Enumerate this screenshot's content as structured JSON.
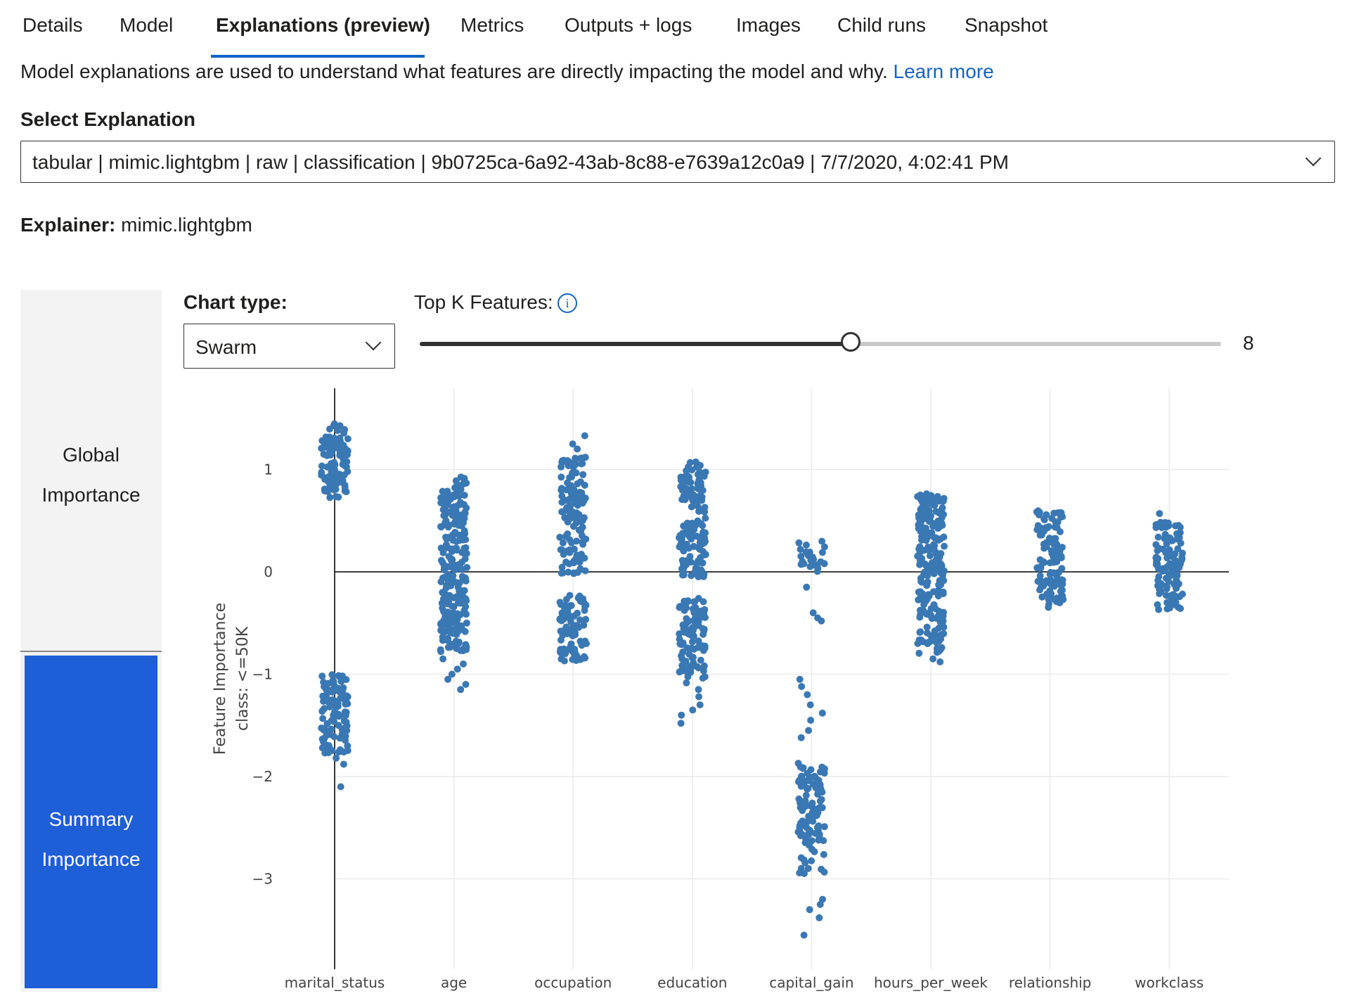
{
  "tabs": [
    {
      "label": "Details"
    },
    {
      "label": "Model"
    },
    {
      "label": "Explanations (preview)",
      "active": true
    },
    {
      "label": "Metrics"
    },
    {
      "label": "Outputs + logs"
    },
    {
      "label": "Images"
    },
    {
      "label": "Child runs"
    },
    {
      "label": "Snapshot"
    }
  ],
  "intro": {
    "text": "Model explanations are used to understand what features are directly impacting the model and why.",
    "link": "Learn more"
  },
  "select_explanation": {
    "label": "Select Explanation",
    "value": "tabular | mimic.lightgbm | raw | classification | 9b0725ca-6a92-43ab-8c88-e7639a12c0a9 | 7/7/2020, 4:02:41 PM"
  },
  "explainer": {
    "label": "Explainer:",
    "value": "mimic.lightgbm"
  },
  "side_nav": {
    "global_line1": "Global",
    "global_line2": "Importance",
    "summary_line1": "Summary",
    "summary_line2": "Importance"
  },
  "controls": {
    "chart_type_label": "Chart type:",
    "chart_type_value": "Swarm",
    "topk_label": "Top K Features:",
    "topk_value": "8",
    "topk_fraction": 0.538
  },
  "colors": {
    "accent": "#1e5ed6",
    "tab_underline": "#0f62c8",
    "link": "#1565c0",
    "point": "#3a78b4"
  },
  "chart_data": {
    "type": "scatter",
    "title": "",
    "ylabel_line1": "Feature Importance",
    "ylabel_line2": "class:  <=50K",
    "xlabel": "",
    "categories": [
      "marital_status",
      "age",
      "occupation",
      "education",
      "capital_gain",
      "hours_per_week",
      "relationship",
      "workclass"
    ],
    "ylim": [
      -3.9,
      1.8
    ],
    "yticks": [
      1,
      0,
      -1,
      -2,
      -3
    ],
    "ytick_labels": [
      "1",
      "0",
      "−1",
      "−2",
      "−3"
    ],
    "series": [
      {
        "clusters": [
          {
            "min": 0.72,
            "max": 1.45,
            "density": 1.0
          },
          {
            "min": -1.78,
            "max": -1.0,
            "density": 1.0
          }
        ],
        "outliers": [
          -1.82,
          -1.88,
          -2.1
        ]
      },
      {
        "clusters": [
          {
            "min": -0.78,
            "max": 0.93,
            "density": 1.0
          }
        ],
        "outliers": [
          -0.85,
          -0.9,
          -0.95,
          -1.0,
          -1.05,
          -1.1,
          -1.15
        ]
      },
      {
        "clusters": [
          {
            "min": 0.1,
            "max": 1.15,
            "density": 0.8
          },
          {
            "min": -0.02,
            "max": 0.1,
            "density": 0.8
          },
          {
            "min": -0.88,
            "max": -0.22,
            "density": 1.0
          }
        ],
        "outliers": [
          1.2,
          1.25,
          1.33
        ]
      },
      {
        "clusters": [
          {
            "min": -0.05,
            "max": 1.08,
            "density": 1.0
          },
          {
            "min": -0.95,
            "max": -0.25,
            "density": 1.0
          },
          {
            "min": -1.1,
            "max": -0.95,
            "density": 0.5
          }
        ],
        "outliers": [
          -1.15,
          -1.22,
          -1.3,
          -1.35,
          -1.4,
          -1.48
        ]
      },
      {
        "clusters": [
          {
            "min": 0.0,
            "max": 0.3,
            "density": 0.6
          },
          {
            "min": -2.35,
            "max": -1.85,
            "density": 0.8
          },
          {
            "min": -2.95,
            "max": -2.35,
            "density": 0.6
          }
        ],
        "outliers": [
          -0.15,
          -0.45,
          -0.48,
          -0.4,
          -1.05,
          -1.12,
          -1.2,
          -1.3,
          -1.38,
          -1.45,
          -1.55,
          -1.62,
          -3.2,
          -3.25,
          -3.3,
          -3.38,
          -3.55
        ]
      },
      {
        "clusters": [
          {
            "min": -0.8,
            "max": 0.77,
            "density": 1.0
          }
        ],
        "outliers": [
          -0.85,
          -0.88
        ]
      },
      {
        "clusters": [
          {
            "min": 0.08,
            "max": 0.6,
            "density": 0.9
          },
          {
            "min": -0.35,
            "max": 0.05,
            "density": 0.9
          }
        ],
        "outliers": []
      },
      {
        "clusters": [
          {
            "min": -0.38,
            "max": 0.5,
            "density": 0.9
          }
        ],
        "outliers": [
          0.57
        ]
      }
    ]
  }
}
